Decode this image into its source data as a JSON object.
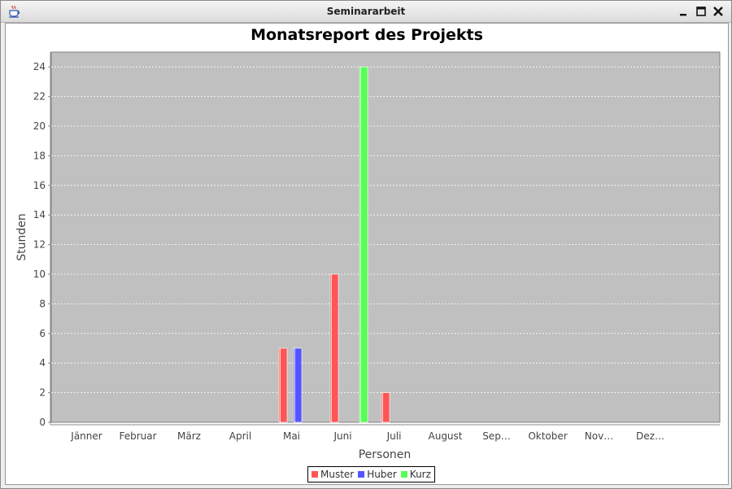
{
  "window": {
    "title": "Seminararbeit",
    "icons": {
      "app": "java-cup-icon",
      "minimize": "minimize-icon",
      "maximize": "maximize-icon",
      "close": "close-icon"
    }
  },
  "chart_data": {
    "type": "bar",
    "title": "Monatsreport des Projekts",
    "xlabel": "Personen",
    "ylabel": "Stunden",
    "ylim": [
      0,
      25
    ],
    "yticks": [
      0,
      2,
      4,
      6,
      8,
      10,
      12,
      14,
      16,
      18,
      20,
      22,
      24
    ],
    "grid": true,
    "legend_position": "bottom",
    "categories": [
      "Jänner",
      "Februar",
      "März",
      "April",
      "Mai",
      "Juni",
      "Juli",
      "August",
      "Sep…",
      "Oktober",
      "Nov…",
      "Dez…"
    ],
    "series": [
      {
        "name": "Muster",
        "color": "#ff5555",
        "values": [
          0,
          0,
          0,
          0,
          5,
          10,
          2,
          0,
          0,
          0,
          0,
          0
        ]
      },
      {
        "name": "Huber",
        "color": "#5555ff",
        "values": [
          0,
          0,
          0,
          0,
          5,
          0,
          0,
          0,
          0,
          0,
          0,
          0
        ]
      },
      {
        "name": "Kurz",
        "color": "#55ff55",
        "values": [
          0,
          0,
          0,
          0,
          0,
          24,
          0,
          0,
          0,
          0,
          0,
          0
        ]
      }
    ]
  }
}
